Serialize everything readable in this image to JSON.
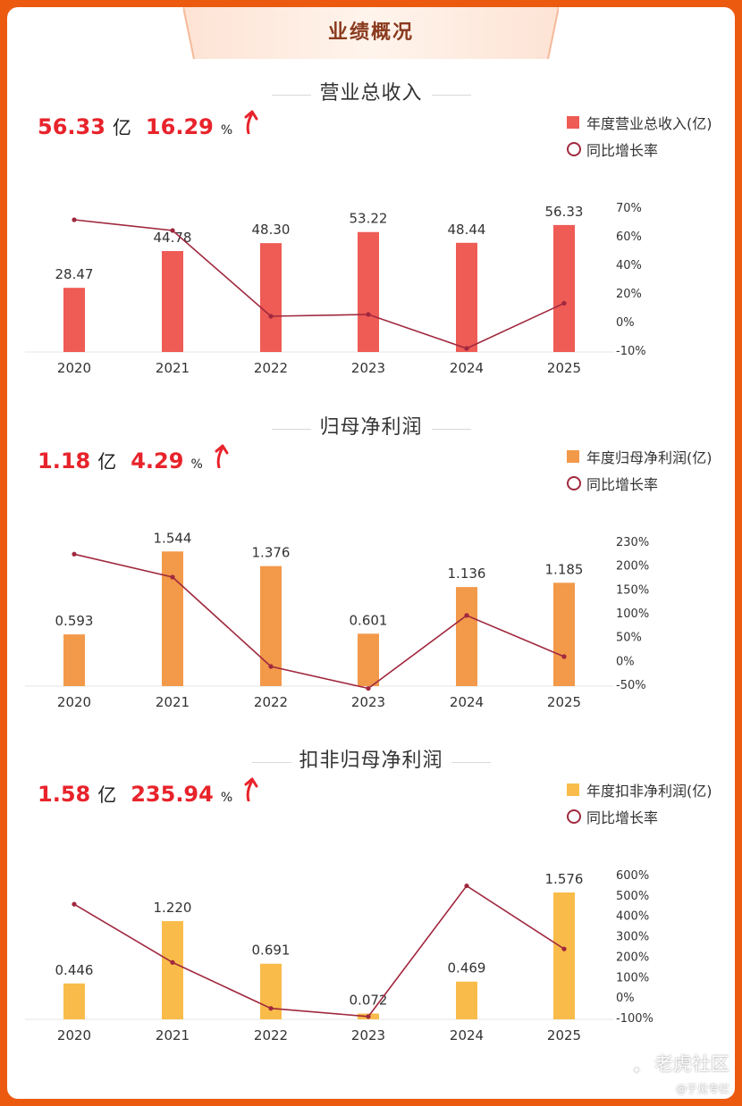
{
  "header": {
    "title": "业绩概况"
  },
  "colors": {
    "frame": "#ec5a10",
    "line": "#a0283e",
    "positive": "#e8232b"
  },
  "sections": [
    {
      "title": "营业总收入",
      "headline": {
        "value": "56.33",
        "unit": "亿",
        "growth": "16.29",
        "growth_unit": "%"
      },
      "legend": {
        "bar": "年度营业总收入(亿)",
        "line": "同比增长率"
      }
    },
    {
      "title": "归母净利润",
      "headline": {
        "value": "1.18",
        "unit": "亿",
        "growth": "4.29",
        "growth_unit": "%"
      },
      "legend": {
        "bar": "年度归母净利润(亿)",
        "line": "同比增长率"
      }
    },
    {
      "title": "扣非归母净利润",
      "headline": {
        "value": "1.58",
        "unit": "亿",
        "growth": "235.94",
        "growth_unit": "%"
      },
      "legend": {
        "bar": "年度扣非净利润(亿)",
        "line": "同比增长率"
      }
    }
  ],
  "watermark": {
    "logo": "老虎社区",
    "sub": "@于见专栏"
  },
  "chart_data": [
    {
      "type": "bar",
      "title": "营业总收入",
      "categories": [
        "2020",
        "2021",
        "2022",
        "2023",
        "2024",
        "2025"
      ],
      "bar_color": "#ef5b55",
      "series": [
        {
          "name": "年度营业总收入(亿)",
          "type": "bar",
          "values": [
            28.47,
            44.78,
            48.3,
            53.22,
            48.44,
            56.33
          ],
          "labels": [
            "28.47",
            "44.78",
            "48.30",
            "53.22",
            "48.44",
            "56.33"
          ]
        },
        {
          "name": "同比增长率",
          "type": "line",
          "axis": "right",
          "values": [
            63,
            57,
            9,
            10,
            -9,
            16.29
          ]
        }
      ],
      "ylim": [
        0,
        65
      ],
      "y2lim": [
        -10,
        70
      ],
      "y2ticks": [
        "70%",
        "60%",
        "40%",
        "20%",
        "0%",
        "-10%"
      ]
    },
    {
      "type": "bar",
      "title": "归母净利润",
      "categories": [
        "2020",
        "2021",
        "2022",
        "2023",
        "2024",
        "2025"
      ],
      "bar_color": "#f2994a",
      "series": [
        {
          "name": "年度归母净利润(亿)",
          "type": "bar",
          "values": [
            0.593,
            1.544,
            1.376,
            0.601,
            1.136,
            1.185
          ],
          "labels": [
            "0.593",
            "1.544",
            "1.376",
            "0.601",
            "1.136",
            "1.185"
          ]
        },
        {
          "name": "同比增长率",
          "type": "line",
          "axis": "right",
          "values": [
            205,
            160,
            -15,
            -58,
            85,
            4.29
          ]
        }
      ],
      "ylim": [
        0,
        1.68
      ],
      "y2lim": [
        -50,
        230
      ],
      "y2ticks": [
        "230%",
        "200%",
        "150%",
        "100%",
        "50%",
        "0%",
        "-50%"
      ]
    },
    {
      "type": "bar",
      "title": "扣非归母净利润",
      "categories": [
        "2020",
        "2021",
        "2022",
        "2023",
        "2024",
        "2025"
      ],
      "bar_color": "#f9bc4a",
      "series": [
        {
          "name": "年度扣非净利润(亿)",
          "type": "bar",
          "values": [
            0.446,
            1.22,
            0.691,
            0.072,
            0.469,
            1.576
          ],
          "labels": [
            "0.446",
            "1.220",
            "0.691",
            "0.072",
            "0.469",
            "1.576"
          ]
        },
        {
          "name": "同比增长率",
          "type": "line",
          "axis": "right",
          "values": [
            455,
            170,
            -55,
            -95,
            545,
            235.94
          ]
        }
      ],
      "ylim": [
        0,
        1.82
      ],
      "y2lim": [
        -100,
        600
      ],
      "y2ticks": [
        "600%",
        "500%",
        "400%",
        "300%",
        "200%",
        "100%",
        "0%",
        "-100%"
      ]
    }
  ]
}
